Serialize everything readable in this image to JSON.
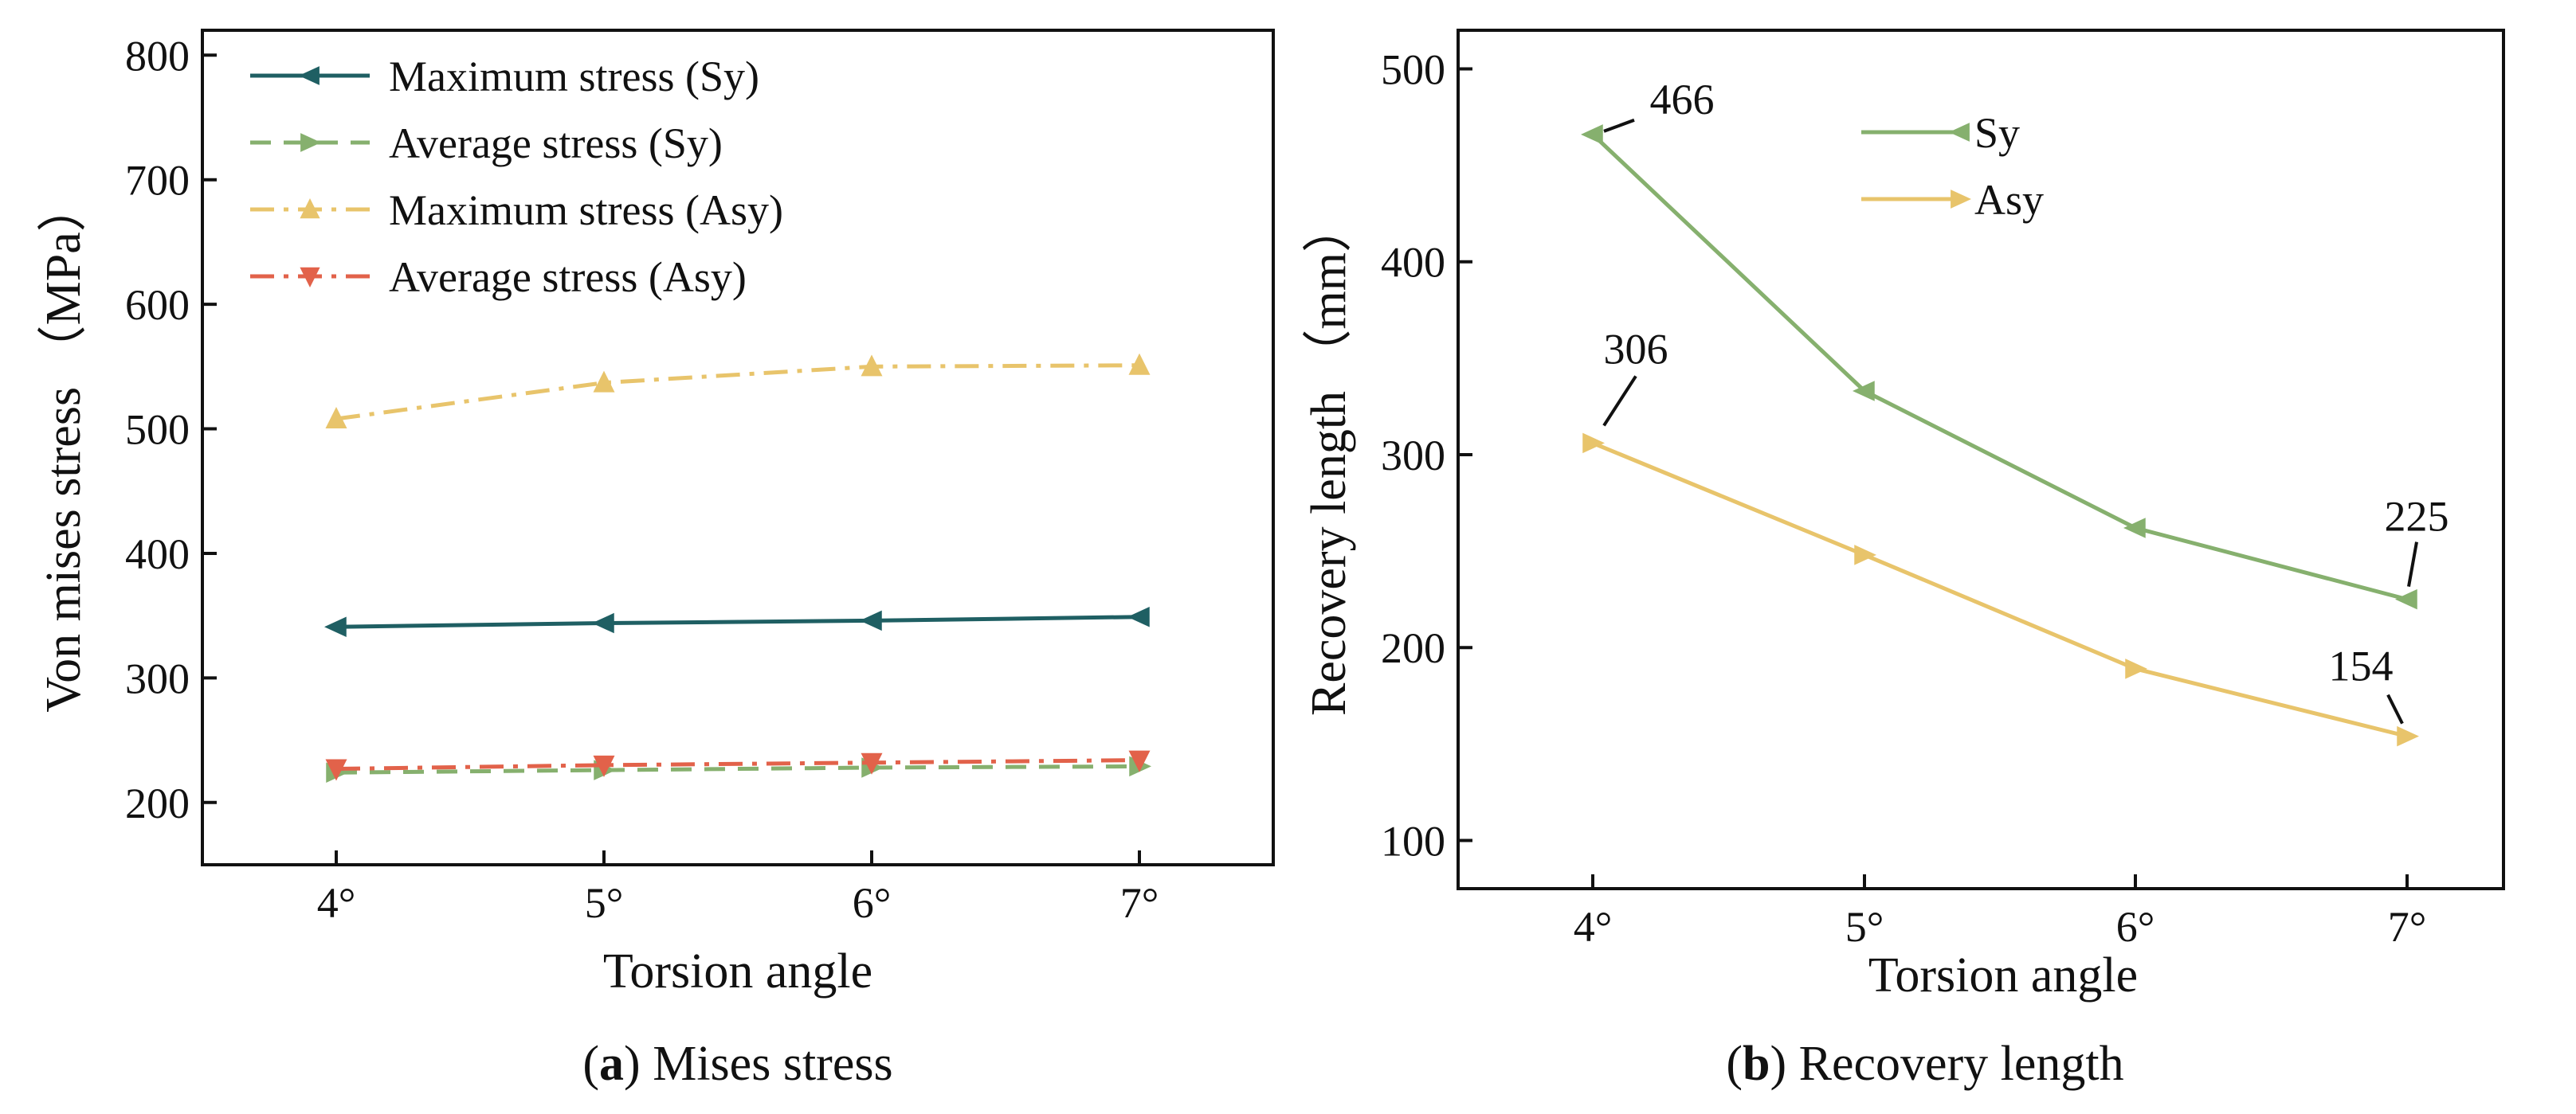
{
  "chart_data": [
    {
      "id": "a",
      "type": "line",
      "xlabel": "Torsion angle",
      "ylabel": "Von mises stress （MPa）",
      "categories": [
        "4°",
        "5°",
        "6°",
        "7°"
      ],
      "ylim": [
        150,
        820
      ],
      "yticks": [
        200,
        300,
        400,
        500,
        600,
        700,
        800
      ],
      "legend_position": "top-left",
      "series": [
        {
          "name": "Maximum stress (Sy)",
          "values": [
            341,
            344,
            346,
            349
          ],
          "color": "#1f5f63",
          "dash": "solid",
          "marker": "left-triangle"
        },
        {
          "name": "Average stress (Sy)",
          "values": [
            224,
            226,
            228,
            229
          ],
          "color": "#86b06e",
          "dash": "dash",
          "marker": "right-triangle"
        },
        {
          "name": "Maximum stress (Asy)",
          "values": [
            508,
            537,
            550,
            551
          ],
          "color": "#e8c46b",
          "dash": "dashdot",
          "marker": "up-triangle"
        },
        {
          "name": "Average stress (Asy)",
          "values": [
            227,
            230,
            232,
            234
          ],
          "color": "#e2624a",
          "dash": "dashdot",
          "marker": "down-triangle"
        }
      ],
      "caption": {
        "letter": "a",
        "text": " Mises stress"
      }
    },
    {
      "id": "b",
      "type": "line",
      "xlabel": "Torsion angle",
      "ylabel": "Recovery length （mm）",
      "categories": [
        "4°",
        "5°",
        "6°",
        "7°"
      ],
      "ylim": [
        75,
        520
      ],
      "yticks": [
        100,
        200,
        300,
        400,
        500
      ],
      "legend_position": "top-center",
      "series": [
        {
          "name": "Sy",
          "values": [
            466,
            333,
            262,
            225
          ],
          "color": "#86b06e",
          "dash": "solid",
          "marker": "left-triangle"
        },
        {
          "name": "Asy",
          "values": [
            306,
            248,
            189,
            154
          ],
          "color": "#e8c46b",
          "dash": "solid",
          "marker": "right-triangle"
        }
      ],
      "annotations": [
        {
          "text": "466",
          "series": 0,
          "point": 0
        },
        {
          "text": "306",
          "series": 1,
          "point": 0
        },
        {
          "text": "225",
          "series": 0,
          "point": 3
        },
        {
          "text": "154",
          "series": 1,
          "point": 3
        }
      ],
      "caption": {
        "letter": "b",
        "text": " Recovery length"
      }
    }
  ]
}
